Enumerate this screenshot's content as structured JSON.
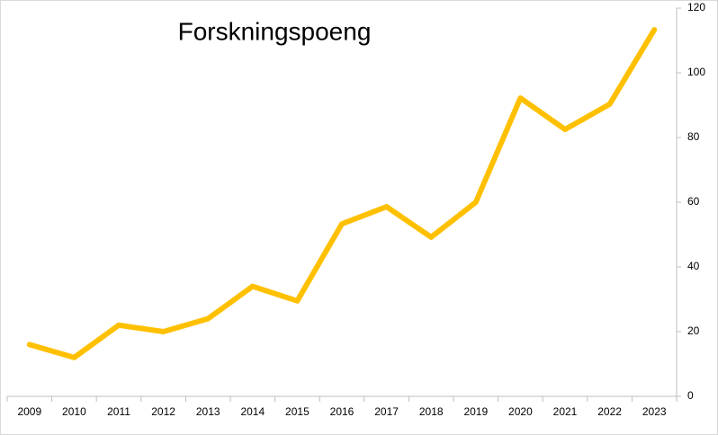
{
  "chart_data": {
    "type": "line",
    "title": "Forskningspoeng",
    "categories": [
      "2009",
      "2010",
      "2011",
      "2012",
      "2013",
      "2014",
      "2015",
      "2016",
      "2017",
      "2018",
      "2019",
      "2020",
      "2021",
      "2022",
      "2023"
    ],
    "values": [
      16,
      12,
      22,
      20,
      24,
      34,
      29.5,
      53.3,
      58.6,
      49.2,
      60,
      92.2,
      82.5,
      90.3,
      113.3
    ],
    "color": "#ffc000",
    "ylim": [
      0,
      120
    ],
    "yticks": [
      0,
      20,
      40,
      60,
      80,
      100,
      120
    ],
    "y_axis_side": "right",
    "grid": false
  }
}
